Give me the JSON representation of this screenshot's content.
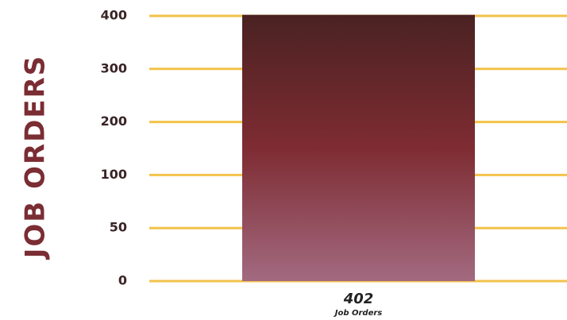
{
  "chart_data": {
    "type": "bar",
    "ylabel": "JOB ORDERS",
    "tick_labels": [
      "0",
      "50",
      "100",
      "200",
      "300",
      "400"
    ],
    "categories": [
      "Job Orders"
    ],
    "values": [
      402
    ],
    "data_labels": [
      "402"
    ],
    "grid": true,
    "colors": {
      "grid": "#f2c24a",
      "bar_top": "#4a2222",
      "bar_mid": "#7e2c32",
      "bar_bottom": "#a26a80",
      "ylabel": "#7a2d33"
    }
  }
}
